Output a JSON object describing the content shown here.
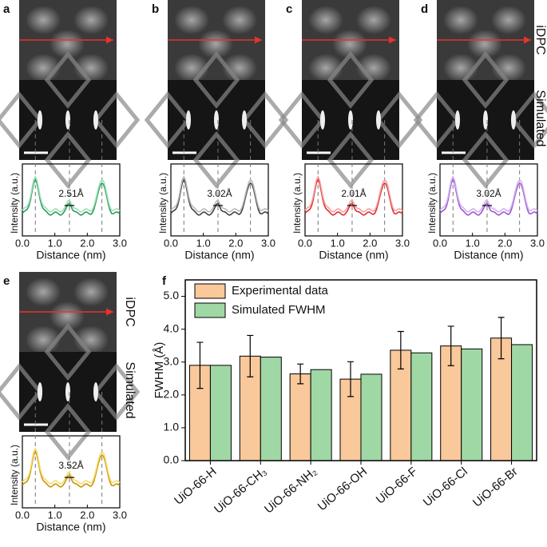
{
  "profiles": [
    {
      "label": "a",
      "annotation": "2.51Å"
    },
    {
      "label": "b",
      "annotation": "3.02Å"
    },
    {
      "label": "c",
      "annotation": "2.01Å"
    },
    {
      "label": "d",
      "annotation": "3.02Å"
    },
    {
      "label": "e",
      "annotation": "3.52Å"
    }
  ],
  "image_labels": {
    "top": "iDPC",
    "bottom": "Simulated"
  },
  "profile_axes": {
    "xlabel": "Distance (nm)",
    "ylabel": "Intensity (a.u.)",
    "xlim": [
      0,
      3
    ],
    "xticks": [
      {
        "value": 0,
        "label": "0.0"
      },
      {
        "value": 1,
        "label": "1.0"
      },
      {
        "value": 2,
        "label": "2.0"
      },
      {
        "value": 3,
        "label": "3.0"
      }
    ]
  },
  "chart_data": {
    "type": "bar",
    "panel_label": "f",
    "ylabel": "FWHM (Å)",
    "categories": [
      "UiO-66-H",
      "UiO-66-CH₃",
      "UiO-66-NH₂",
      "UiO-66-OH",
      "UiO-66-F",
      "UiO-66-Cl",
      "UiO-66-Br"
    ],
    "series": [
      {
        "name": "Experimental data",
        "color": "#f9c89b",
        "values": [
          2.9,
          3.18,
          2.64,
          2.48,
          3.36,
          3.49,
          3.73
        ],
        "errors": [
          0.7,
          0.63,
          0.3,
          0.53,
          0.57,
          0.6,
          0.63
        ]
      },
      {
        "name": "Simulated FWHM",
        "color": "#9fd8a5",
        "values": [
          2.9,
          3.15,
          2.77,
          2.63,
          3.28,
          3.4,
          3.53
        ]
      }
    ],
    "ylim": [
      0,
      5.5
    ],
    "yticks": [
      {
        "value": 0,
        "label": "0.0"
      },
      {
        "value": 1,
        "label": "1.0"
      },
      {
        "value": 2,
        "label": "2.0"
      },
      {
        "value": 3,
        "label": "3.0"
      },
      {
        "value": 4,
        "label": "4.0"
      },
      {
        "value": 5,
        "label": "5.0"
      }
    ],
    "legend": "upper-left"
  }
}
